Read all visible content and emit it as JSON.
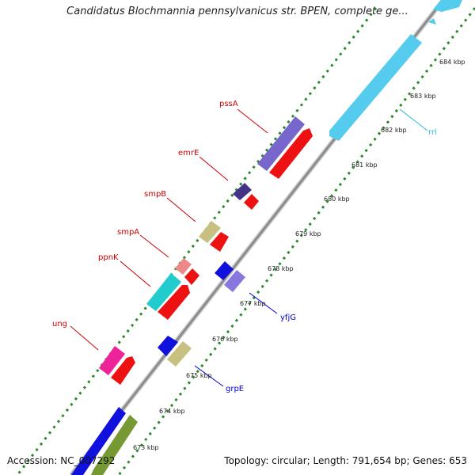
{
  "header": {
    "title": "Candidatus Blochmannia pennsylvanicus str. BPEN, complete ge..."
  },
  "footer": {
    "accession": "Accession: NC_007292",
    "summary": "Topology: circular; Length: 791,654 bp; Genes: 653"
  },
  "colors": {
    "backbone": "#8c8c8c",
    "tick_dash": "#2a8a2a",
    "label_red": "#cc0000",
    "label_blue": "#0000cc",
    "label_cyan": "#33bbdd"
  },
  "ticks": [
    "673 kbp",
    "674 kbp",
    "675 kbp",
    "676 kbp",
    "677 kbp",
    "678 kbp",
    "679 kbp",
    "680 kbp",
    "681 kbp",
    "682 kbp",
    "683 kbp",
    "684 kbp"
  ],
  "genes": [
    {
      "name": "pssA",
      "color": "#7766cc"
    },
    {
      "name": "emrE",
      "color": "#443388"
    },
    {
      "name": "smpB",
      "color": "#c8c080"
    },
    {
      "name": "smpA",
      "color": "#ee8888"
    },
    {
      "name": "ppnK",
      "color": "#22cccc"
    },
    {
      "name": "ung",
      "color": "#ee2299"
    },
    {
      "name": "yfjG",
      "color": "#8877dd"
    },
    {
      "name": "grpE",
      "color": "#c8c080"
    },
    {
      "name": "rrl",
      "color": "#55ccee"
    }
  ],
  "features_unlabeled": {
    "red_cds": "#ee1111",
    "blue_cds": "#1111dd",
    "olive_cds": "#779933"
  }
}
